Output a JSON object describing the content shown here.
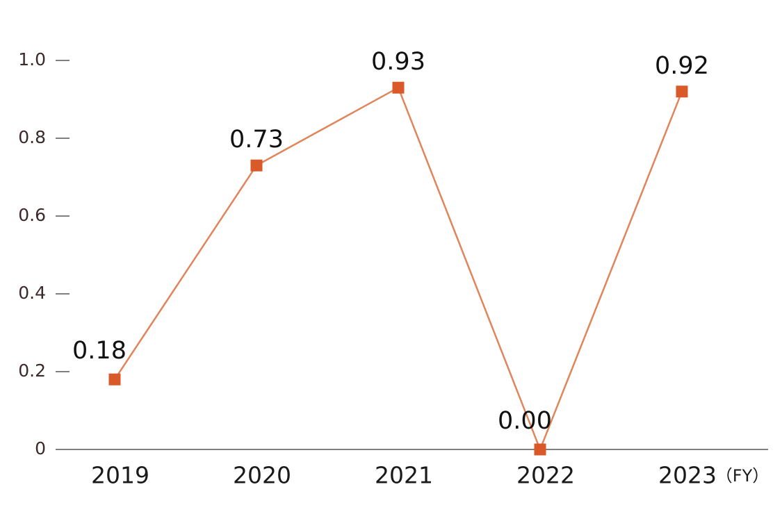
{
  "chart_data": {
    "type": "line",
    "categories": [
      "2019",
      "2020",
      "2021",
      "2022",
      "2023"
    ],
    "series": [
      {
        "color": "#e0845a",
        "marker_color": "#d95a28",
        "values": [
          0.18,
          0.73,
          0.93,
          0,
          0.92
        ],
        "value_labels": [
          "0.18",
          "0.73",
          "0.93",
          "0.00",
          "0.92"
        ]
      }
    ],
    "x_label": "（FY）",
    "ylim": [
      0,
      1.05
    ],
    "yticks": [
      0,
      0.2,
      0.4,
      0.6,
      0.8,
      {
        "value": 1,
        "label": "1.0"
      }
    ]
  }
}
